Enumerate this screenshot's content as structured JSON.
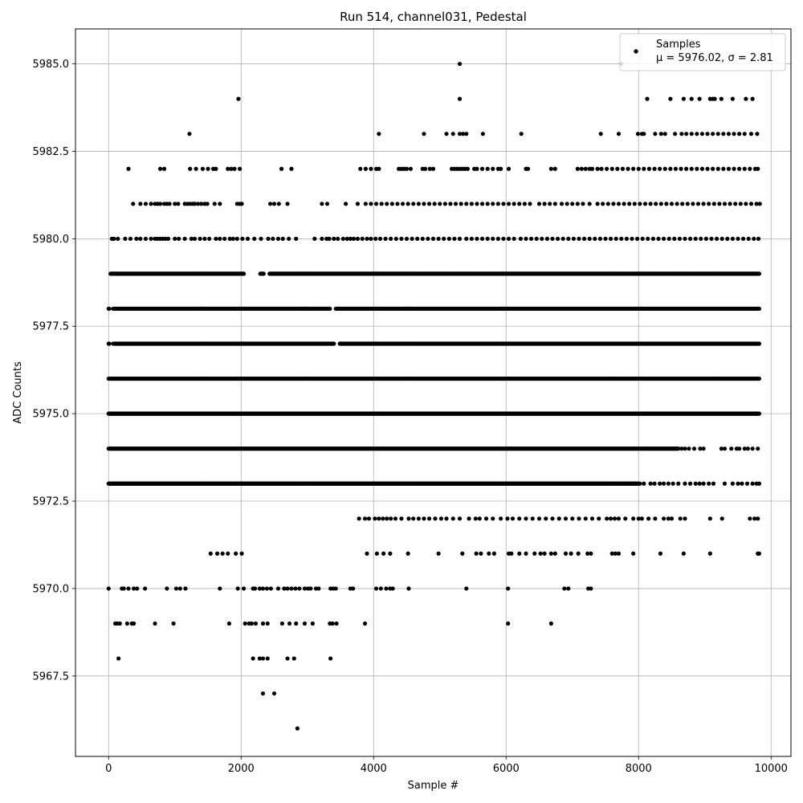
{
  "chart_data": {
    "type": "scatter",
    "title": "Run 514, channel031, Pedestal",
    "xlabel": "Sample #",
    "ylabel": "ADC Counts",
    "xlim": [
      -500,
      10300
    ],
    "ylim": [
      5965.2,
      5986.0
    ],
    "x_ticks": [
      0,
      2000,
      4000,
      6000,
      8000,
      10000
    ],
    "x_tick_labels": [
      "0",
      "2000",
      "4000",
      "6000",
      "8000",
      "10000"
    ],
    "y_ticks": [
      5967.5,
      5970.0,
      5972.5,
      5975.0,
      5977.5,
      5980.0,
      5982.5,
      5985.0
    ],
    "y_tick_labels": [
      "5967.5",
      "5970.0",
      "5972.5",
      "5975.0",
      "5977.5",
      "5980.0",
      "5982.5",
      "5985.0"
    ],
    "grid": true,
    "legend": {
      "position": "top-right",
      "label_line1": "Samples",
      "label_line2": "μ = 5976.02, σ = 2.81"
    },
    "marker_color": "#000000",
    "series": [
      {
        "name": "Samples",
        "n_samples": 9830,
        "mean": 5976.02,
        "sigma": 2.81,
        "levels": [
          {
            "y": 5966,
            "x": [
              2850
            ]
          },
          {
            "y": 5967,
            "x": [
              2330,
              2500
            ]
          },
          {
            "y": 5968,
            "x": [
              150,
              2180,
              2280,
              2330,
              2400,
              2700,
              2800,
              3350
            ]
          },
          {
            "y": 5969,
            "x": [
              100,
              130,
              170,
              280,
              350,
              380,
              700,
              980,
              1820,
              2060,
              2120,
              2160,
              2220,
              2330,
              2400,
              2620,
              2730,
              2830,
              2960,
              3080,
              3340,
              3380,
              3440,
              3870,
              6030,
              6680
            ]
          },
          {
            "y": 5970,
            "x": [
              0,
              200,
              230,
              300,
              380,
              430,
              550,
              880,
              1020,
              1080,
              1160,
              1680,
              1950,
              2040,
              2180,
              2210,
              2280,
              2330,
              2390,
              2450,
              2560,
              2650,
              2700,
              2760,
              2820,
              2880,
              2960,
              3010,
              3050,
              3130,
              3170,
              3350,
              3390,
              3430,
              3650,
              3690,
              4040,
              4110,
              4190,
              4250,
              4290,
              4530,
              5400,
              6030,
              6880,
              6940,
              7240,
              7280
            ]
          },
          {
            "y": 5971,
            "x": [
              1540,
              1640,
              1720,
              1800,
              1920,
              2010,
              3900,
              4050,
              4150,
              4250,
              4520,
              4980,
              5340,
              5550,
              5620,
              5740,
              5820,
              6040,
              6080,
              6200,
              6300,
              6430,
              6520,
              6580,
              6680,
              6740,
              6900,
              6980,
              7090,
              7230,
              7280,
              7600,
              7650,
              7700,
              7920,
              8330,
              8680,
              9080,
              9800,
              9820
            ]
          },
          {
            "y": 5972,
            "x": [
              3780,
              3870,
              3930,
              4020,
              4080,
              4140,
              4200,
              4260,
              4330,
              4420,
              4530,
              4600,
              4680,
              4760,
              4840,
              4930,
              5020,
              5100,
              5200,
              5300,
              5440,
              5540,
              5600,
              5700,
              5800,
              5920,
              6020,
              6100,
              6200,
              6300,
              6400,
              6500,
              6600,
              6700,
              6800,
              6900,
              7000,
              7100,
              7200,
              7300,
              7400,
              7520,
              7580,
              7640,
              7700,
              7800,
              7920,
              8000,
              8050,
              8150,
              8250,
              8380,
              8450,
              8500,
              8630,
              8700,
              9080,
              9260,
              9680,
              9750,
              9800
            ]
          },
          {
            "y": 5973,
            "x": [
              8020,
              8080,
              8180,
              8240,
              8320,
              8380,
              8450,
              8520,
              8600,
              8700,
              8780,
              8860,
              8920,
              8980,
              9060,
              9130,
              9300,
              9420,
              9500,
              9560,
              9640,
              9720,
              9780,
              9820
            ]
          },
          {
            "y": 5974,
            "x": [
              8650,
              8700,
              8760,
              8840,
              8930,
              8980,
              9250,
              9300,
              9400,
              9480,
              9520,
              9600,
              9650,
              9720,
              9800
            ]
          },
          {
            "y": 5980,
            "x": [
              50,
              80,
              140,
              250,
              330,
              420,
              480,
              560,
              640,
              700,
              740,
              780,
              820,
              860,
              900,
              1000,
              1060,
              1150,
              1250,
              1300,
              1380,
              1450,
              1520,
              1620,
              1680,
              1750,
              1830,
              1880,
              1940,
              2020,
              2100,
              2200,
              2300,
              2410,
              2480,
              2560,
              2630,
              2720,
              2830,
              3110,
              3220,
              3290,
              3330,
              3400,
              3460,
              3540,
              3600,
              3650,
              3700,
              3760,
              3830,
              3900,
              3960,
              4030,
              4100,
              4180,
              4260,
              4340,
              4420,
              4500,
              4580,
              4660,
              4740,
              4820,
              4900,
              4980,
              5060,
              5140,
              5220,
              5300,
              5400,
              5480,
              5560,
              5640,
              5720,
              5800,
              5880,
              5960,
              6040,
              6120,
              6220,
              6300,
              6380,
              6460,
              6540,
              6620,
              6700,
              6780,
              6860,
              6940,
              7020,
              7100,
              7180,
              7260,
              7340,
              7420,
              7500,
              7580,
              7660,
              7740,
              7820,
              7900,
              7980,
              8060,
              8140,
              8220,
              8300,
              8380,
              8460,
              8540,
              8620,
              8700,
              8780,
              8860,
              8940,
              9020,
              9100,
              9180,
              9260,
              9340,
              9420,
              9500,
              9580,
              9660,
              9740,
              9810
            ]
          },
          {
            "y": 5981,
            "x": [
              370,
              480,
              560,
              640,
              700,
              740,
              780,
              840,
              880,
              920,
              1000,
              1050,
              1150,
              1190,
              1230,
              1270,
              1300,
              1350,
              1400,
              1450,
              1490,
              1600,
              1680,
              1940,
              1980,
              2010,
              2440,
              2500,
              2570,
              2700,
              3220,
              3300,
              3580,
              3760,
              3880,
              3960,
              4040,
              4120,
              4200,
              4280,
              4360,
              4440,
              4520,
              4600,
              4680,
              4760,
              4840,
              4920,
              5000,
              5080,
              5160,
              5240,
              5320,
              5400,
              5480,
              5560,
              5640,
              5720,
              5800,
              5880,
              5960,
              6040,
              6120,
              6200,
              6280,
              6360,
              6500,
              6580,
              6660,
              6740,
              6840,
              6920,
              7000,
              7080,
              7160,
              7260,
              7380,
              7460,
              7540,
              7620,
              7700,
              7780,
              7860,
              7940,
              8020,
              8100,
              8180,
              8260,
              8340,
              8420,
              8500,
              8580,
              8660,
              8740,
              8820,
              8900,
              8980,
              9060,
              9140,
              9220,
              9300,
              9380,
              9460,
              9540,
              9620,
              9700,
              9780,
              9830
            ]
          },
          {
            "y": 5982,
            "x": [
              300,
              780,
              840,
              1230,
              1320,
              1420,
              1500,
              1580,
              1620,
              1800,
              1850,
              1900,
              1980,
              2610,
              2760,
              3800,
              3880,
              3960,
              4040,
              4080,
              4380,
              4420,
              4460,
              4500,
              4560,
              4740,
              4780,
              4850,
              4900,
              5180,
              5220,
              5260,
              5300,
              5340,
              5380,
              5420,
              5520,
              5560,
              5640,
              5720,
              5800,
              5880,
              5920,
              6040,
              6300,
              6330,
              6680,
              6740,
              7080,
              7140,
              7200,
              7260,
              7300,
              7380,
              7440,
              7520,
              7600,
              7680,
              7760,
              7840,
              7920,
              8000,
              8080,
              8160,
              8240,
              8320,
              8400,
              8480,
              8560,
              8640,
              8720,
              8800,
              8880,
              8960,
              9040,
              9120,
              9200,
              9280,
              9360,
              9440,
              9520,
              9600,
              9680,
              9760,
              9800
            ]
          },
          {
            "y": 5983,
            "x": [
              1220,
              4080,
              4760,
              5100,
              5200,
              5300,
              5350,
              5400,
              5650,
              6230,
              7430,
              7700,
              7990,
              8050,
              8080,
              8250,
              8340,
              8400,
              8550,
              8650,
              8720,
              8800,
              8880,
              8960,
              9040,
              9120,
              9200,
              9280,
              9360,
              9440,
              9520,
              9600,
              9700,
              9790
            ]
          },
          {
            "y": 5984,
            "x": [
              1960,
              5300,
              8130,
              8480,
              8680,
              8800,
              8920,
              9080,
              9120,
              9150,
              9250,
              9420,
              9620,
              9720
            ]
          },
          {
            "y": 5985,
            "x": [
              5300,
              7740
            ]
          }
        ]
      }
    ]
  }
}
